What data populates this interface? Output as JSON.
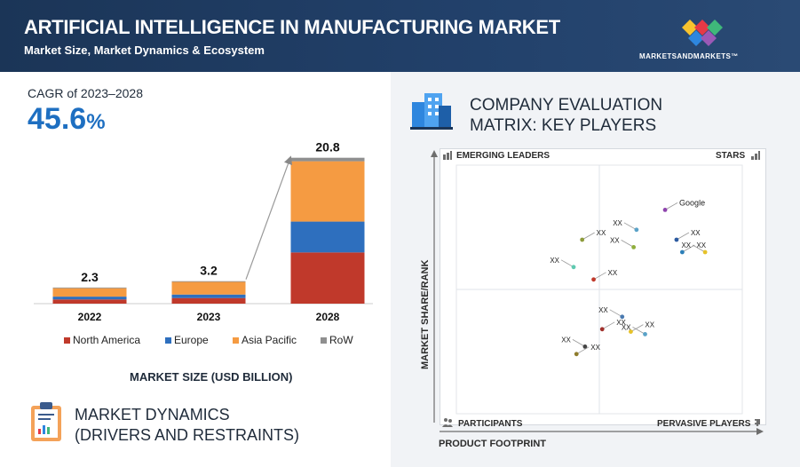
{
  "header": {
    "title": "ARTIFICIAL INTELLIGENCE IN MANUFACTURING MARKET",
    "subtitle": "Market Size, Market Dynamics & Ecosystem",
    "brand": "MARKETSANDMARKETS™"
  },
  "cagr": {
    "label": "CAGR of 2023–2028",
    "value": "45.6",
    "unit": "%"
  },
  "chart_data": [
    {
      "type": "bar",
      "stacked": true,
      "categories": [
        "2022",
        "2023",
        "2028"
      ],
      "totals": [
        "2.3",
        "3.2",
        "20.8"
      ],
      "series": [
        {
          "name": "North America",
          "color": "#c0392b",
          "values": [
            0.6,
            0.8,
            7.3
          ]
        },
        {
          "name": "Europe",
          "color": "#2e6fbe",
          "values": [
            0.4,
            0.5,
            4.4
          ]
        },
        {
          "name": "Asia Pacific",
          "color": "#f59b42",
          "values": [
            1.2,
            1.8,
            8.6
          ]
        },
        {
          "name": "RoW",
          "color": "#8f8f8f",
          "values": [
            0.1,
            0.1,
            0.5
          ]
        }
      ],
      "xlabel": "MARKET SIZE (USD BILLION)",
      "legend": "bottom"
    },
    {
      "type": "scatter",
      "title": "COMPANY EVALUATION MATRIX: KEY PLAYERS",
      "xlabel": "PRODUCT FOOTPRINT",
      "ylabel": "MARKET SHARE/RANK",
      "quadrants": {
        "top_left": "EMERGING LEADERS",
        "top_right": "STARS",
        "bottom_left": "PARTICIPANTS",
        "bottom_right": "PERVASIVE PLAYERS"
      },
      "points": [
        {
          "label": "Google",
          "color": "#8e44ad",
          "x": 0.73,
          "y": 0.82
        },
        {
          "label": "XX",
          "color": "#5aa2c8",
          "x": 0.63,
          "y": 0.74
        },
        {
          "label": "XX",
          "color": "#2c5aa0",
          "x": 0.77,
          "y": 0.7
        },
        {
          "label": "XX",
          "color": "#8fae3c",
          "x": 0.62,
          "y": 0.67
        },
        {
          "label": "XX",
          "color": "#2c7fb8",
          "x": 0.79,
          "y": 0.65
        },
        {
          "label": "XX",
          "color": "#e6c229",
          "x": 0.87,
          "y": 0.65
        },
        {
          "label": "XX",
          "color": "#8e9c3c",
          "x": 0.44,
          "y": 0.7
        },
        {
          "label": "XX",
          "color": "#5fc9b0",
          "x": 0.41,
          "y": 0.59
        },
        {
          "label": "XX",
          "color": "#c0392b",
          "x": 0.48,
          "y": 0.54
        },
        {
          "label": "XX",
          "color": "#4a7ab0",
          "x": 0.58,
          "y": 0.39
        },
        {
          "label": "XX",
          "color": "#e6c229",
          "x": 0.61,
          "y": 0.33
        },
        {
          "label": "XX",
          "color": "#5aa2c8",
          "x": 0.66,
          "y": 0.32
        },
        {
          "label": "XX",
          "color": "#a0302b",
          "x": 0.51,
          "y": 0.34
        },
        {
          "label": "XX",
          "color": "#444444",
          "x": 0.45,
          "y": 0.27
        },
        {
          "label": "XX",
          "color": "#8e7c2c",
          "x": 0.42,
          "y": 0.24
        }
      ]
    }
  ],
  "dynamics": {
    "line1": "MARKET DYNAMICS",
    "line2": "(DRIVERS AND RESTRAINTS)"
  },
  "icons": [
    "brand-diamond-icon",
    "buildings-icon",
    "clipboard-icon",
    "emerging-leaders-icon",
    "stars-icon",
    "participants-icon",
    "pervasive-players-icon"
  ]
}
